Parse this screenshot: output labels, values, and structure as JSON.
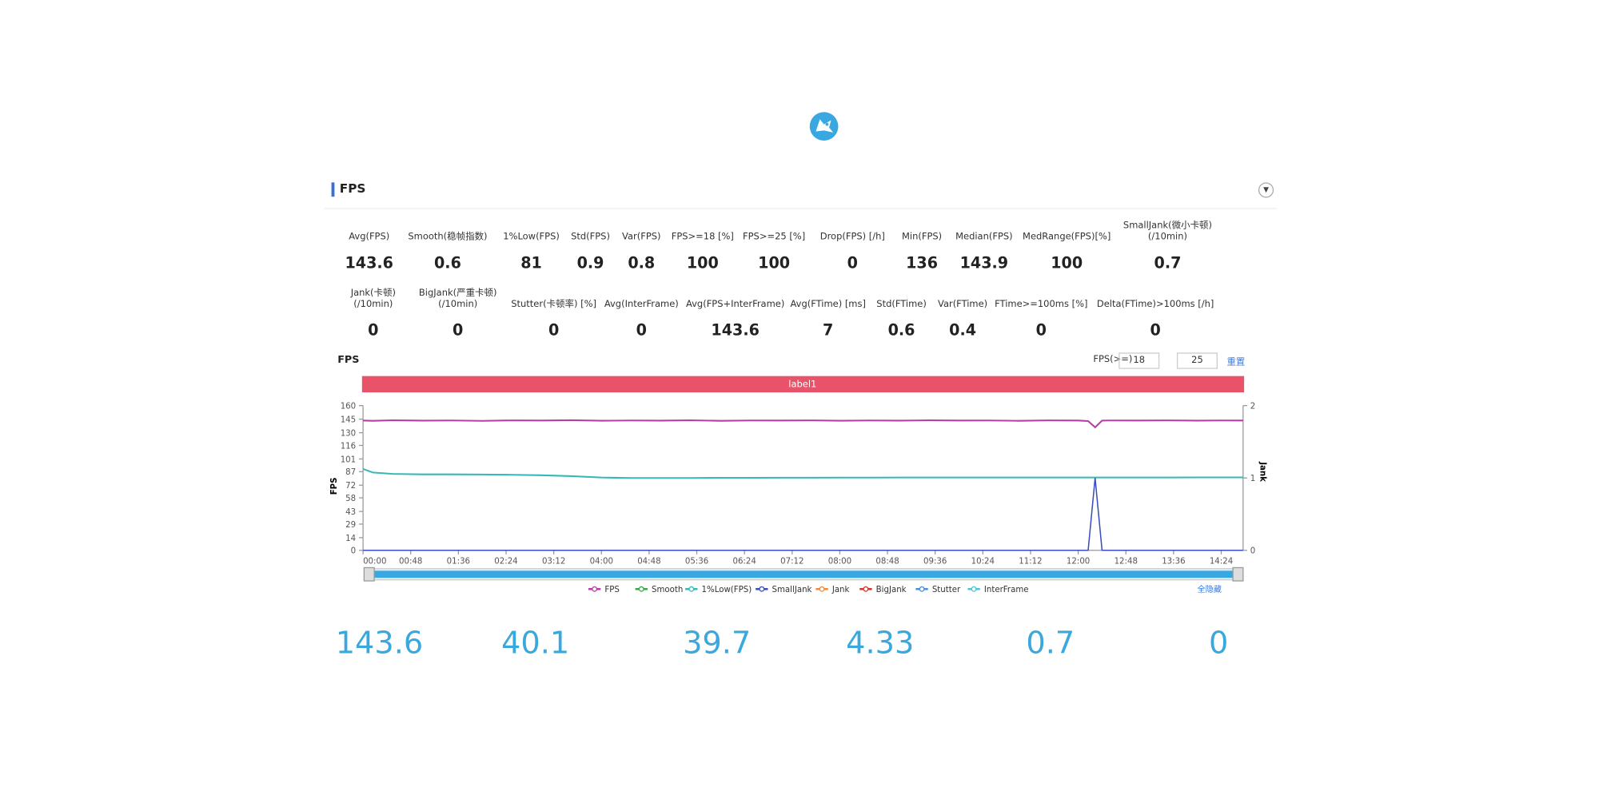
{
  "header": {
    "section_title": "FPS"
  },
  "stats": {
    "row1": [
      {
        "label": [
          "Avg(FPS)"
        ],
        "value": 143.6
      },
      {
        "label": [
          "Smooth(稳帧指数)"
        ],
        "value": 0.6
      },
      {
        "label": [
          "1%Low(FPS)"
        ],
        "value": 81
      },
      {
        "label": [
          "Std(FPS)"
        ],
        "value": 0.9
      },
      {
        "label": [
          "Var(FPS)"
        ],
        "value": 0.8
      },
      {
        "label": [
          "FPS>=18 [%]"
        ],
        "value": 100
      },
      {
        "label": [
          "FPS>=25 [%]"
        ],
        "value": 100
      },
      {
        "label": [
          "Drop(FPS) [/h]"
        ],
        "value": 0
      },
      {
        "label": [
          "Min(FPS)"
        ],
        "value": 136
      },
      {
        "label": [
          "Median(FPS)"
        ],
        "value": 143.9
      },
      {
        "label": [
          "MedRange(FPS)[%]"
        ],
        "value": 100
      },
      {
        "label": [
          "SmallJank(微小卡顿)",
          "(/10min)"
        ],
        "value": 0.7
      }
    ],
    "row2": [
      {
        "label": [
          "Jank(卡顿)",
          "(/10min)"
        ],
        "value": 0
      },
      {
        "label": [
          "BigJank(严重卡顿)",
          "(/10min)"
        ],
        "value": 0
      },
      {
        "label": [
          "Stutter(卡顿率) [%]"
        ],
        "value": 0
      },
      {
        "label": [
          "Avg(InterFrame)"
        ],
        "value": 0
      },
      {
        "label": [
          "Avg(FPS+InterFrame)"
        ],
        "value": 143.6
      },
      {
        "label": [
          "Avg(FTime) [ms]"
        ],
        "value": 7
      },
      {
        "label": [
          "Std(FTime)"
        ],
        "value": 0.6
      },
      {
        "label": [
          "Var(FTime)"
        ],
        "value": 0.4
      },
      {
        "label": [
          "FTime>=100ms [%]"
        ],
        "value": 0
      },
      {
        "label": [
          "Delta(FTime)>100ms [/h]"
        ],
        "value": 0
      }
    ]
  },
  "controls": {
    "threshold_label": "FPS(>=)",
    "thresholds": [
      18,
      25
    ],
    "reset": "重置",
    "hide_all": "全隐藏"
  },
  "chart_data": {
    "type": "line",
    "title": "FPS",
    "band_label": "label1",
    "ylabel": "FPS",
    "y2label": "Jank",
    "x": [
      0,
      10,
      30,
      60,
      90,
      120,
      150,
      180,
      210,
      240,
      270,
      300,
      330,
      360,
      390,
      420,
      450,
      480,
      510,
      540,
      570,
      600,
      630,
      660,
      690,
      720,
      730,
      737,
      744,
      750,
      780,
      810,
      840,
      870,
      886
    ],
    "xlim": [
      0,
      886
    ],
    "xticks": [
      {
        "value": 0,
        "label": "00:00"
      },
      {
        "value": 48,
        "label": "00:48"
      },
      {
        "value": 96,
        "label": "01:36"
      },
      {
        "value": 144,
        "label": "02:24"
      },
      {
        "value": 192,
        "label": "03:12"
      },
      {
        "value": 240,
        "label": "04:00"
      },
      {
        "value": 288,
        "label": "04:48"
      },
      {
        "value": 336,
        "label": "05:36"
      },
      {
        "value": 384,
        "label": "06:24"
      },
      {
        "value": 432,
        "label": "07:12"
      },
      {
        "value": 480,
        "label": "08:00"
      },
      {
        "value": 528,
        "label": "08:48"
      },
      {
        "value": 576,
        "label": "09:36"
      },
      {
        "value": 624,
        "label": "10:24"
      },
      {
        "value": 672,
        "label": "11:12"
      },
      {
        "value": 720,
        "label": "12:00"
      },
      {
        "value": 768,
        "label": "12:48"
      },
      {
        "value": 816,
        "label": "13:36"
      },
      {
        "value": 864,
        "label": "14:24"
      }
    ],
    "ylim": [
      0,
      160
    ],
    "yticks": [
      0,
      14,
      29,
      43,
      58,
      72,
      87,
      101,
      116,
      130,
      145,
      160
    ],
    "y2lim": [
      0,
      2
    ],
    "y2ticks": [
      0,
      1,
      2
    ],
    "grid": false,
    "series": [
      {
        "name": "FPS",
        "color": "#b63fa6",
        "values": [
          143.5,
          143.2,
          143.8,
          143.4,
          143.6,
          143.1,
          143.7,
          143.5,
          143.9,
          143.3,
          143.6,
          143.4,
          143.8,
          143.2,
          143.6,
          143.5,
          143.7,
          143.3,
          143.6,
          143.4,
          143.8,
          143.5,
          143.6,
          143.2,
          143.7,
          143.5,
          142.9,
          136,
          143.4,
          143.6,
          143.5,
          143.7,
          143.4,
          143.6,
          143.5
        ]
      },
      {
        "name": "Smooth",
        "color": "#3aa84a"
      },
      {
        "name": "1%Low(FPS)",
        "color": "#35b9b4",
        "values": [
          90,
          86,
          84.5,
          84,
          84,
          83.8,
          83.5,
          83,
          82,
          80.5,
          80,
          80,
          80,
          80.2,
          80.2,
          80.3,
          80.3,
          80.4,
          80.4,
          80.5,
          80.5,
          80.5,
          80.5,
          80.5,
          80.5,
          80.5,
          80.5,
          80.5,
          80.5,
          80.5,
          80.5,
          80.5,
          80.6,
          80.6,
          80.6
        ]
      },
      {
        "name": "SmallJank",
        "color": "#3b4cc0",
        "axis": "y2",
        "values": [
          0,
          0,
          0,
          0,
          0,
          0,
          0,
          0,
          0,
          0,
          0,
          0,
          0,
          0,
          0,
          0,
          0,
          0,
          0,
          0,
          0,
          0,
          0,
          0,
          0,
          0,
          0,
          1,
          0,
          0,
          0,
          0,
          0,
          0,
          0
        ]
      },
      {
        "name": "Jank",
        "color": "#f08a3c"
      },
      {
        "name": "BigJank",
        "color": "#d6322f"
      },
      {
        "name": "Stutter",
        "color": "#4b8fd8"
      },
      {
        "name": "InterFrame",
        "color": "#4ec3d8"
      }
    ]
  },
  "summary": [
    143.6,
    40.1,
    39.7,
    4.33,
    0.7,
    0
  ]
}
